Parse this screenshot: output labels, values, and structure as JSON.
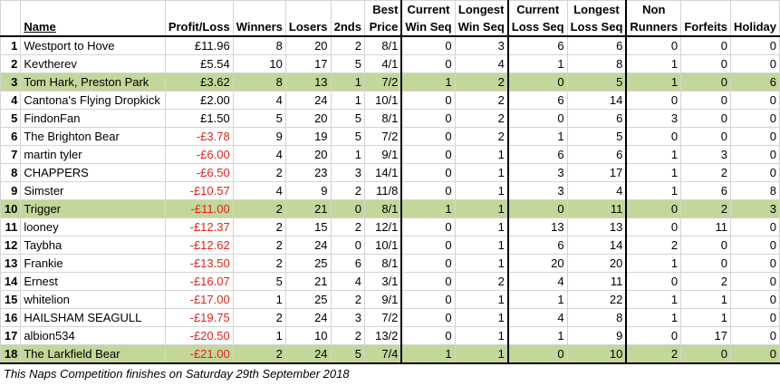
{
  "headers": {
    "rank": "",
    "name": "Name",
    "profit_loss": "Profit/Loss",
    "winners": "Winners",
    "losers": "Losers",
    "seconds": "2nds",
    "best_price": [
      "Best",
      "Price"
    ],
    "current_win_seq": [
      "Current",
      "Win Seq"
    ],
    "longest_win_seq": [
      "Longest",
      "Win Seq"
    ],
    "current_loss_seq": [
      "Current",
      "Loss Seq"
    ],
    "longest_loss_seq": [
      "Longest",
      "Loss Seq"
    ],
    "non_runners": [
      "Non",
      "Runners"
    ],
    "forfeits": "Forfeits",
    "holiday": "Holiday"
  },
  "rows": [
    {
      "rank": "1",
      "name": "Westport to Hove",
      "pl": "£11.96",
      "neg": false,
      "winners": "8",
      "losers": "20",
      "seconds": "2",
      "best": "8/1",
      "cws": "0",
      "lws": "3",
      "cls": "6",
      "lls": "6",
      "nr": "0",
      "ff": "0",
      "hol": "0",
      "hl": false
    },
    {
      "rank": "2",
      "name": "Kevtherev",
      "pl": "£5.54",
      "neg": false,
      "winners": "10",
      "losers": "17",
      "seconds": "5",
      "best": "4/1",
      "cws": "0",
      "lws": "4",
      "cls": "1",
      "lls": "8",
      "nr": "1",
      "ff": "0",
      "hol": "0",
      "hl": false
    },
    {
      "rank": "3",
      "name": "Tom Hark, Preston Park",
      "pl": "£3.62",
      "neg": false,
      "winners": "8",
      "losers": "13",
      "seconds": "1",
      "best": "7/2",
      "cws": "1",
      "lws": "2",
      "cls": "0",
      "lls": "5",
      "nr": "1",
      "ff": "0",
      "hol": "6",
      "hl": true
    },
    {
      "rank": "4",
      "name": "Cantona's Flying Dropkick",
      "pl": "£2.00",
      "neg": false,
      "winners": "4",
      "losers": "24",
      "seconds": "1",
      "best": "10/1",
      "cws": "0",
      "lws": "2",
      "cls": "6",
      "lls": "14",
      "nr": "0",
      "ff": "0",
      "hol": "0",
      "hl": false
    },
    {
      "rank": "5",
      "name": "FindonFan",
      "pl": "£1.50",
      "neg": false,
      "winners": "5",
      "losers": "20",
      "seconds": "5",
      "best": "8/1",
      "cws": "0",
      "lws": "2",
      "cls": "0",
      "lls": "6",
      "nr": "3",
      "ff": "0",
      "hol": "0",
      "hl": false
    },
    {
      "rank": "6",
      "name": "The Brighton Bear",
      "pl": "-£3.78",
      "neg": true,
      "winners": "9",
      "losers": "19",
      "seconds": "5",
      "best": "7/2",
      "cws": "0",
      "lws": "2",
      "cls": "1",
      "lls": "5",
      "nr": "0",
      "ff": "0",
      "hol": "0",
      "hl": false
    },
    {
      "rank": "7",
      "name": "martin tyler",
      "pl": "-£6.00",
      "neg": true,
      "winners": "4",
      "losers": "20",
      "seconds": "1",
      "best": "9/1",
      "cws": "0",
      "lws": "1",
      "cls": "6",
      "lls": "6",
      "nr": "1",
      "ff": "3",
      "hol": "0",
      "hl": false
    },
    {
      "rank": "8",
      "name": "CHAPPERS",
      "pl": "-£6.50",
      "neg": true,
      "winners": "2",
      "losers": "23",
      "seconds": "3",
      "best": "14/1",
      "cws": "0",
      "lws": "1",
      "cls": "3",
      "lls": "17",
      "nr": "1",
      "ff": "2",
      "hol": "0",
      "hl": false
    },
    {
      "rank": "9",
      "name": "Simster",
      "pl": "-£10.57",
      "neg": true,
      "winners": "4",
      "losers": "9",
      "seconds": "2",
      "best": "11/8",
      "cws": "0",
      "lws": "1",
      "cls": "3",
      "lls": "4",
      "nr": "1",
      "ff": "6",
      "hol": "8",
      "hl": false
    },
    {
      "rank": "10",
      "name": "Trigger",
      "pl": "-£11.00",
      "neg": true,
      "winners": "2",
      "losers": "21",
      "seconds": "0",
      "best": "8/1",
      "cws": "1",
      "lws": "1",
      "cls": "0",
      "lls": "11",
      "nr": "0",
      "ff": "2",
      "hol": "3",
      "hl": true
    },
    {
      "rank": "11",
      "name": "looney",
      "pl": "-£12.37",
      "neg": true,
      "winners": "2",
      "losers": "15",
      "seconds": "2",
      "best": "12/1",
      "cws": "0",
      "lws": "1",
      "cls": "13",
      "lls": "13",
      "nr": "0",
      "ff": "11",
      "hol": "0",
      "hl": false
    },
    {
      "rank": "12",
      "name": "Taybha",
      "pl": "-£12.62",
      "neg": true,
      "winners": "2",
      "losers": "24",
      "seconds": "0",
      "best": "10/1",
      "cws": "0",
      "lws": "1",
      "cls": "6",
      "lls": "14",
      "nr": "2",
      "ff": "0",
      "hol": "0",
      "hl": false
    },
    {
      "rank": "13",
      "name": "Frankie",
      "pl": "-£13.50",
      "neg": true,
      "winners": "2",
      "losers": "25",
      "seconds": "6",
      "best": "8/1",
      "cws": "0",
      "lws": "1",
      "cls": "20",
      "lls": "20",
      "nr": "1",
      "ff": "0",
      "hol": "0",
      "hl": false
    },
    {
      "rank": "14",
      "name": "Ernest",
      "pl": "-£16.07",
      "neg": true,
      "winners": "5",
      "losers": "21",
      "seconds": "4",
      "best": "3/1",
      "cws": "0",
      "lws": "2",
      "cls": "4",
      "lls": "11",
      "nr": "0",
      "ff": "2",
      "hol": "0",
      "hl": false
    },
    {
      "rank": "15",
      "name": "whitelion",
      "pl": "-£17.00",
      "neg": true,
      "winners": "1",
      "losers": "25",
      "seconds": "2",
      "best": "9/1",
      "cws": "0",
      "lws": "1",
      "cls": "1",
      "lls": "22",
      "nr": "1",
      "ff": "1",
      "hol": "0",
      "hl": false
    },
    {
      "rank": "16",
      "name": "HAILSHAM SEAGULL",
      "pl": "-£19.75",
      "neg": true,
      "winners": "2",
      "losers": "24",
      "seconds": "3",
      "best": "7/2",
      "cws": "0",
      "lws": "1",
      "cls": "4",
      "lls": "8",
      "nr": "1",
      "ff": "1",
      "hol": "0",
      "hl": false
    },
    {
      "rank": "17",
      "name": "albion534",
      "pl": "-£20.50",
      "neg": true,
      "winners": "1",
      "losers": "10",
      "seconds": "2",
      "best": "13/2",
      "cws": "0",
      "lws": "1",
      "cls": "1",
      "lls": "9",
      "nr": "0",
      "ff": "17",
      "hol": "0",
      "hl": false
    },
    {
      "rank": "18",
      "name": "The Larkfield Bear",
      "pl": "-£21.00",
      "neg": true,
      "winners": "2",
      "losers": "24",
      "seconds": "5",
      "best": "7/4",
      "cws": "1",
      "lws": "1",
      "cls": "0",
      "lls": "10",
      "nr": "2",
      "ff": "0",
      "hol": "0",
      "hl": true
    }
  ],
  "footer": "This Naps Competition finishes on Saturday 29th September 2018"
}
